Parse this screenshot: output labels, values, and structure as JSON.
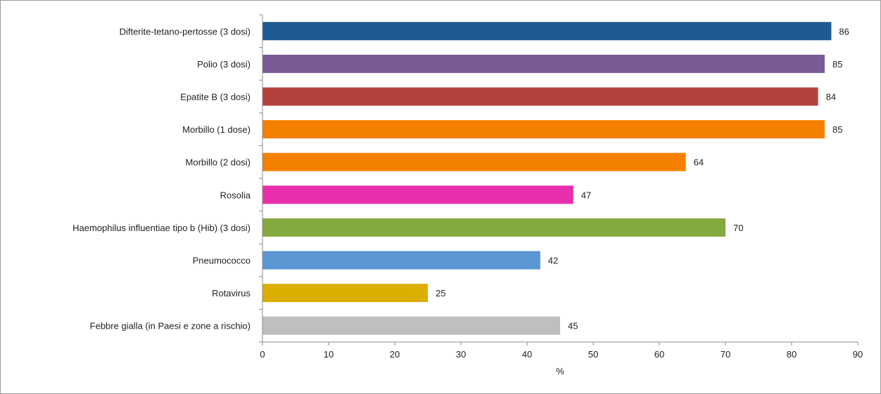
{
  "chart_data": {
    "type": "bar",
    "orientation": "horizontal",
    "categories": [
      "Difterite-tetano-pertosse (3 dosi)",
      "Polio (3 dosi)",
      "Epatite B (3 dosi)",
      "Morbillo (1 dose)",
      "Morbillo (2 dosi)",
      "Rosolia",
      "Haemophilus influentiae tipo b (Hib) (3 dosi)",
      "Pneumococco",
      "Rotavirus",
      "Febbre gialla (in Paesi e zone a rischio)"
    ],
    "values": [
      86,
      85,
      84,
      85,
      64,
      47,
      70,
      42,
      25,
      45
    ],
    "value_labels": [
      "86",
      "85",
      "84",
      "85",
      "64",
      "47",
      "70",
      "42",
      "25",
      "45"
    ],
    "colors": [
      "#1f5a92",
      "#7a5a94",
      "#b5413c",
      "#f58000",
      "#f58000",
      "#e92fae",
      "#83a93f",
      "#5b96d2",
      "#dcae00",
      "#bfbfbf"
    ],
    "xlabel": "%",
    "xlim": [
      0,
      90
    ],
    "xticks": [
      "0",
      "10",
      "20",
      "30",
      "40",
      "50",
      "60",
      "70",
      "80",
      "90"
    ],
    "grid": false,
    "legend": "none"
  }
}
